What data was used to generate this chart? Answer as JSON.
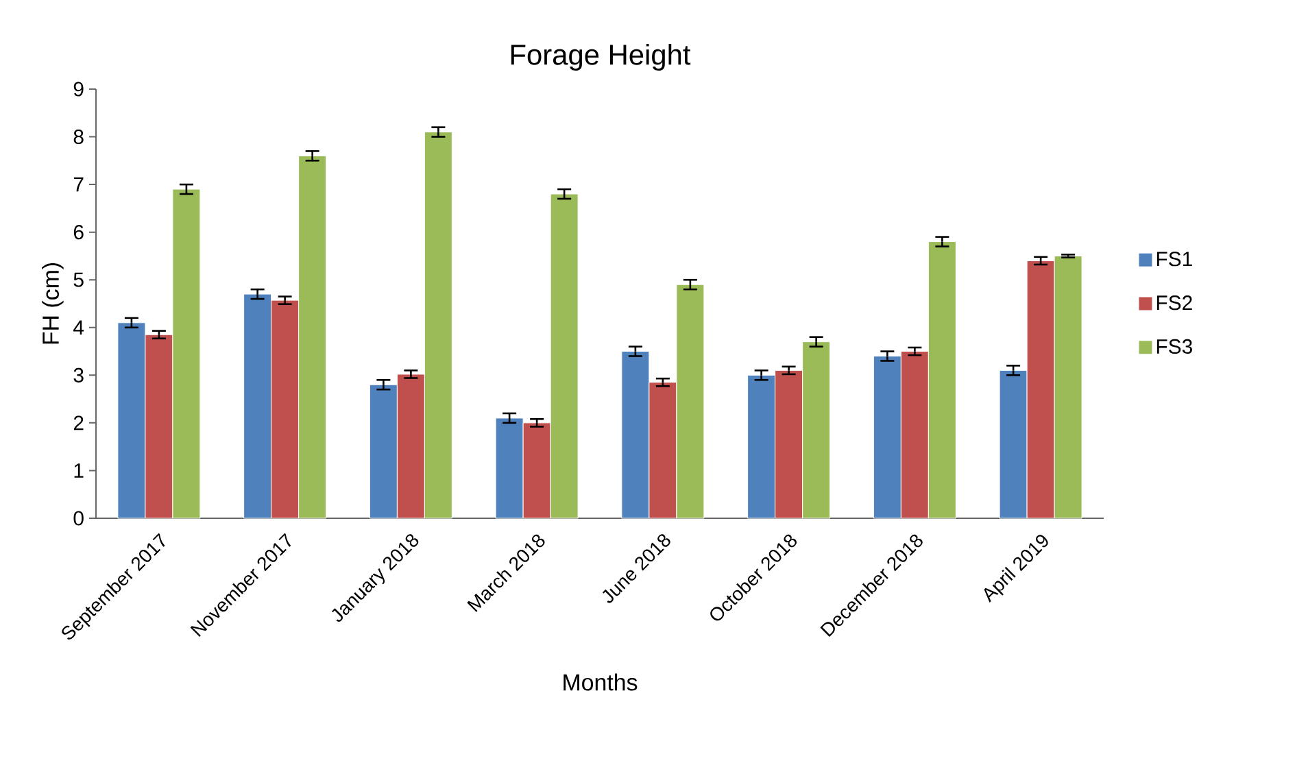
{
  "chart_data": {
    "type": "bar",
    "title": "Forage Height",
    "xlabel": "Months",
    "ylabel": "FH (cm)",
    "categories": [
      "September 2017",
      "November 2017",
      "January 2018",
      "March 2018",
      "June 2018",
      "October 2018",
      "December 2018",
      "April 2019"
    ],
    "series": [
      {
        "name": "FS1",
        "color": "#4f81bd",
        "values": [
          4.1,
          4.7,
          2.8,
          2.1,
          3.5,
          3.0,
          3.4,
          3.1
        ],
        "errors": [
          0.1,
          0.1,
          0.1,
          0.1,
          0.1,
          0.1,
          0.1,
          0.1
        ]
      },
      {
        "name": "FS2",
        "color": "#c0504d",
        "values": [
          3.85,
          4.57,
          3.02,
          2.0,
          2.85,
          3.1,
          3.5,
          5.4
        ],
        "errors": [
          0.08,
          0.08,
          0.08,
          0.08,
          0.08,
          0.08,
          0.08,
          0.08
        ]
      },
      {
        "name": "FS3",
        "color": "#9bbb59",
        "values": [
          6.9,
          7.6,
          8.1,
          6.8,
          4.9,
          3.7,
          5.8,
          5.5
        ],
        "errors": [
          0.1,
          0.1,
          0.1,
          0.1,
          0.1,
          0.1,
          0.1,
          0.03
        ]
      }
    ],
    "ylim": [
      0,
      9
    ],
    "yticks": [
      0,
      1,
      2,
      3,
      4,
      5,
      6,
      7,
      8,
      9
    ],
    "grid": false,
    "legend": "right"
  }
}
